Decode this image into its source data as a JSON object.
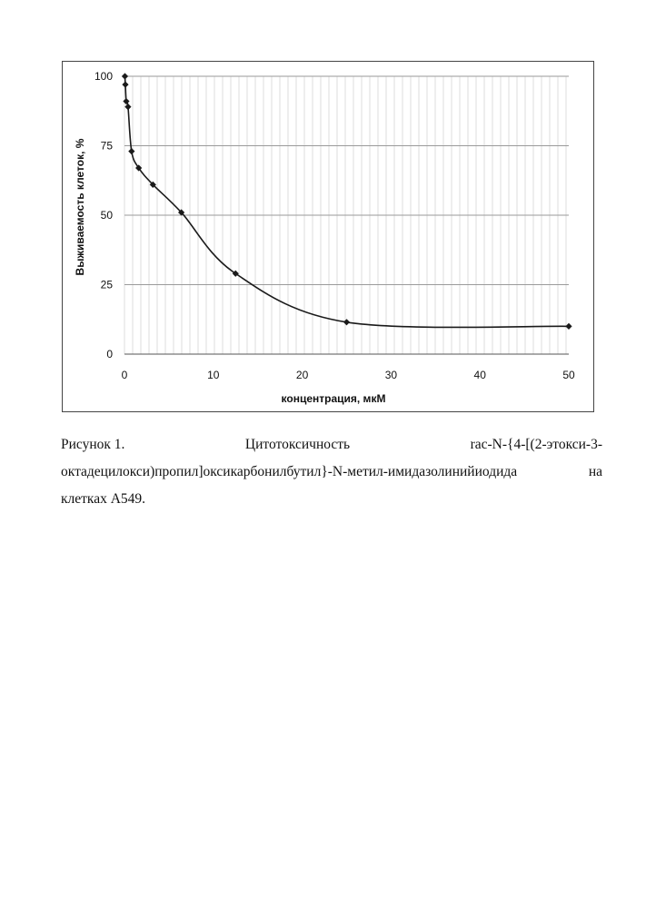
{
  "chart_data": {
    "type": "line",
    "title": "",
    "xlabel": "концентрация, мкМ",
    "ylabel": "Выживаемость клеток, %",
    "xlim": [
      0,
      50
    ],
    "ylim": [
      0,
      100
    ],
    "xticks": [
      "0",
      "10",
      "20",
      "30",
      "40",
      "50"
    ],
    "yticks": [
      "0",
      "25",
      "50",
      "75",
      "100"
    ],
    "grid": true,
    "legend": "none",
    "series": [
      {
        "x": [
          0.05,
          0.1,
          0.2,
          0.4,
          0.8,
          1.6,
          3.2,
          6.4,
          12.5,
          25,
          50
        ],
        "y": [
          100,
          97,
          91,
          89,
          73,
          67,
          61,
          51,
          29,
          11.5,
          10
        ]
      }
    ],
    "colors": {
      "line": "#1a1a1a",
      "marker": "#1a1a1a",
      "grid": "#9a9a9a"
    }
  },
  "caption": {
    "line1": [
      "Рисунок 1.",
      "Цитотоксичность",
      "rac-N-{4-[(2-этокси-3-"
    ],
    "line2": [
      "октадецилокси)пропил]оксикарбонилбутил}-N-метил-имидазолинийиодида",
      "на"
    ],
    "line3": "клетках А549."
  }
}
